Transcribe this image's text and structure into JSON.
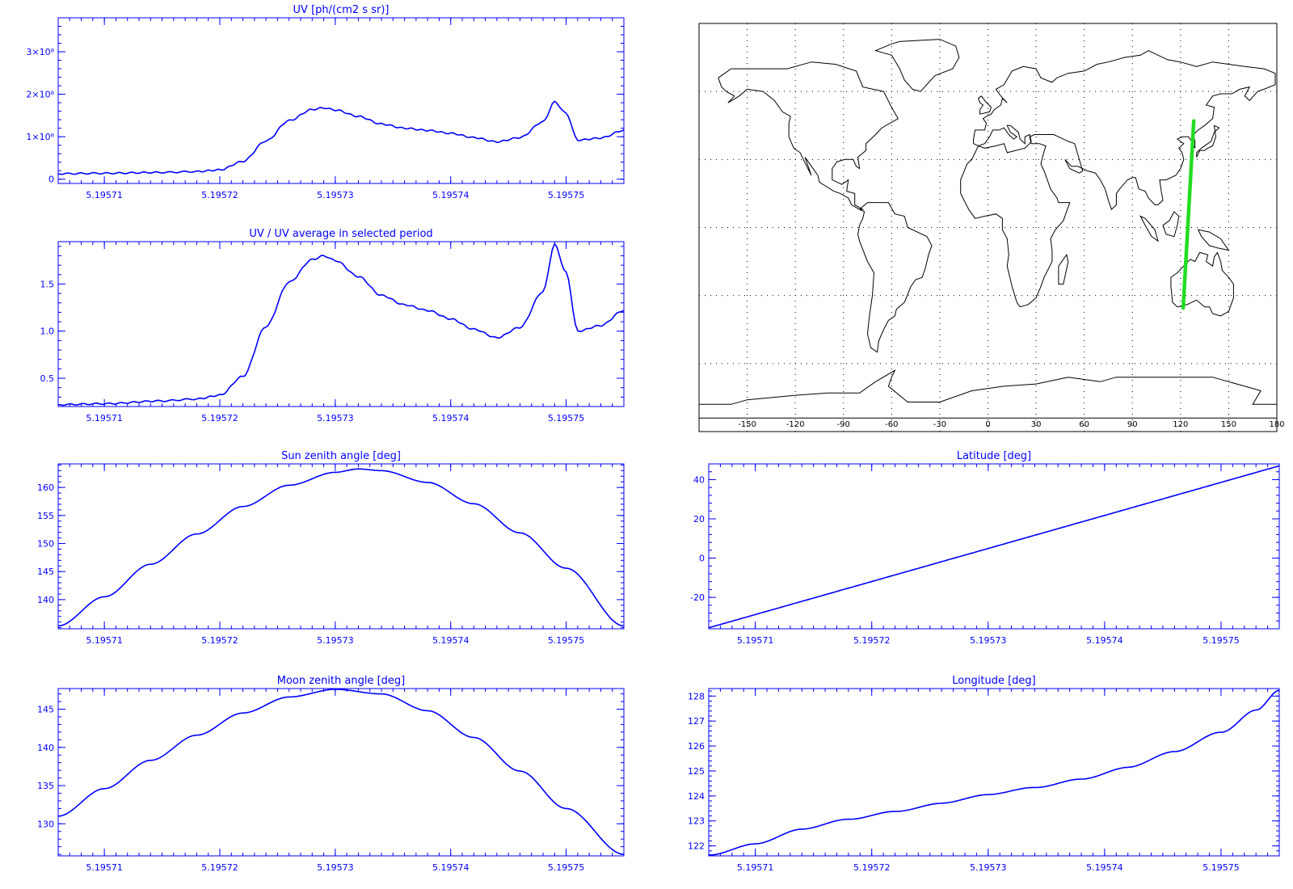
{
  "colors": {
    "axis": "#0000ff",
    "line": "#0000ff",
    "map_coast": "#000000",
    "map_frame": "#000000",
    "map_label": "#000000",
    "track": "#22dd22",
    "background": "#ffffff"
  },
  "chart_data": [
    {
      "id": "uv",
      "type": "line",
      "title": "UV [ph/(cm2 s sr)]",
      "xlim": [
        5.195706,
        5.195755
      ],
      "ylim": [
        -0.1,
        3.8
      ],
      "x_ticks": [
        5.19571,
        5.19572,
        5.19573,
        5.19574,
        5.19575
      ],
      "x_tick_labels": [
        "5.19571",
        "5.19572",
        "5.19573",
        "5.19574",
        "5.19575"
      ],
      "y_ticks": [
        0,
        1,
        2,
        3
      ],
      "y_tick_labels": [
        "0",
        "1×10⁸",
        "2×10⁸",
        "3×10⁸"
      ],
      "x": [
        5.195706,
        5.19571,
        5.195715,
        5.195718,
        5.19572,
        5.195722,
        5.195724,
        5.195726,
        5.195728,
        5.195729,
        5.19573,
        5.195732,
        5.195734,
        5.195736,
        5.195738,
        5.19574,
        5.195742,
        5.195744,
        5.195746,
        5.195748,
        5.195749,
        5.19575,
        5.195751,
        5.195753,
        5.195755
      ],
      "y": [
        0.13,
        0.14,
        0.16,
        0.18,
        0.22,
        0.42,
        0.9,
        1.38,
        1.64,
        1.68,
        1.63,
        1.48,
        1.3,
        1.2,
        1.15,
        1.08,
        0.98,
        0.88,
        0.98,
        1.35,
        1.82,
        1.55,
        0.92,
        0.97,
        1.15
      ]
    },
    {
      "id": "uv-ratio",
      "type": "line",
      "title": "UV / UV average in selected period",
      "xlim": [
        5.195706,
        5.195755
      ],
      "ylim": [
        0.2,
        1.95
      ],
      "x_ticks": [
        5.19571,
        5.19572,
        5.19573,
        5.19574,
        5.19575
      ],
      "x_tick_labels": [
        "5.19571",
        "5.19572",
        "5.19573",
        "5.19574",
        "5.19575"
      ],
      "y_ticks": [
        0.5,
        1.0,
        1.5
      ],
      "y_tick_labels": [
        "0.5",
        "1.0",
        "1.5"
      ],
      "x": [
        5.195706,
        5.19571,
        5.195715,
        5.195718,
        5.19572,
        5.195722,
        5.195724,
        5.195726,
        5.195728,
        5.195729,
        5.19573,
        5.195732,
        5.195734,
        5.195736,
        5.195738,
        5.19574,
        5.195742,
        5.195744,
        5.195746,
        5.195748,
        5.195749,
        5.19575,
        5.195751,
        5.195753,
        5.195755
      ],
      "y": [
        0.22,
        0.23,
        0.26,
        0.28,
        0.32,
        0.52,
        1.05,
        1.52,
        1.76,
        1.8,
        1.75,
        1.58,
        1.38,
        1.28,
        1.22,
        1.13,
        1.02,
        0.93,
        1.04,
        1.42,
        1.92,
        1.62,
        1.0,
        1.06,
        1.22
      ]
    },
    {
      "id": "sun-zenith",
      "type": "line",
      "title": "Sun zenith angle [deg]",
      "xlim": [
        5.195706,
        5.195755
      ],
      "ylim": [
        134.8,
        164.2
      ],
      "x_ticks": [
        5.19571,
        5.19572,
        5.19573,
        5.19574,
        5.19575
      ],
      "x_tick_labels": [
        "5.19571",
        "5.19572",
        "5.19573",
        "5.19574",
        "5.19575"
      ],
      "y_ticks": [
        140,
        145,
        150,
        155,
        160
      ],
      "y_tick_labels": [
        "140",
        "145",
        "150",
        "155",
        "160"
      ],
      "x": [
        5.195706,
        5.19571,
        5.195714,
        5.195718,
        5.195722,
        5.195726,
        5.19573,
        5.195732,
        5.195734,
        5.195738,
        5.195742,
        5.195746,
        5.19575,
        5.195755
      ],
      "y": [
        135.3,
        140.5,
        146.3,
        151.7,
        156.6,
        160.4,
        162.7,
        163.3,
        163.0,
        160.9,
        157.1,
        151.9,
        145.6,
        135.3
      ]
    },
    {
      "id": "latitude",
      "type": "line",
      "title": "Latitude [deg]",
      "xlim": [
        5.195706,
        5.195755
      ],
      "ylim": [
        -36,
        48
      ],
      "x_ticks": [
        5.19571,
        5.19572,
        5.19573,
        5.19574,
        5.19575
      ],
      "x_tick_labels": [
        "5.19571",
        "5.19572",
        "5.19573",
        "5.19574",
        "5.19575"
      ],
      "y_ticks": [
        -20,
        0,
        20,
        40
      ],
      "y_tick_labels": [
        "-20",
        "0",
        "20",
        "40"
      ],
      "x": [
        5.195706,
        5.195755
      ],
      "y": [
        -35.5,
        47.0
      ]
    },
    {
      "id": "moon-zenith",
      "type": "line",
      "title": "Moon zenith angle [deg]",
      "xlim": [
        5.195706,
        5.195755
      ],
      "ylim": [
        125.8,
        147.7
      ],
      "x_ticks": [
        5.19571,
        5.19572,
        5.19573,
        5.19574,
        5.19575
      ],
      "x_tick_labels": [
        "5.19571",
        "5.19572",
        "5.19573",
        "5.19574",
        "5.19575"
      ],
      "y_ticks": [
        130,
        135,
        140,
        145
      ],
      "y_tick_labels": [
        "130",
        "135",
        "140",
        "145"
      ],
      "x": [
        5.195706,
        5.19571,
        5.195714,
        5.195718,
        5.195722,
        5.195726,
        5.19573,
        5.195734,
        5.195738,
        5.195742,
        5.195746,
        5.19575,
        5.195755
      ],
      "y": [
        131.0,
        134.6,
        138.3,
        141.6,
        144.5,
        146.6,
        147.6,
        147.0,
        144.8,
        141.3,
        136.9,
        132.0,
        126.0
      ]
    },
    {
      "id": "longitude",
      "type": "line",
      "title": "Longitude [deg]",
      "xlim": [
        5.195706,
        5.195755
      ],
      "ylim": [
        121.6,
        128.3
      ],
      "x_ticks": [
        5.19571,
        5.19572,
        5.19573,
        5.19574,
        5.19575
      ],
      "x_tick_labels": [
        "5.19571",
        "5.19572",
        "5.19573",
        "5.19574",
        "5.19575"
      ],
      "y_ticks": [
        122,
        123,
        124,
        125,
        126,
        127,
        128
      ],
      "y_tick_labels": [
        "122",
        "123",
        "124",
        "125",
        "126",
        "127",
        "128"
      ],
      "x": [
        5.195706,
        5.19571,
        5.195714,
        5.195718,
        5.195722,
        5.195726,
        5.19573,
        5.195734,
        5.195738,
        5.195742,
        5.195746,
        5.19575,
        5.195753,
        5.195755
      ],
      "y": [
        121.65,
        122.1,
        122.65,
        123.05,
        123.4,
        123.72,
        124.03,
        124.33,
        124.7,
        125.15,
        125.75,
        126.55,
        127.45,
        128.25
      ]
    }
  ],
  "map": {
    "type": "world-map",
    "projection": "cylindrical",
    "lon_range": [
      -180,
      180
    ],
    "lat_range": [
      -90,
      90
    ],
    "lon_ticks": [
      -150,
      -120,
      -90,
      -60,
      -30,
      0,
      30,
      60,
      90,
      120,
      150,
      180
    ],
    "lon_tick_labels": [
      "-150",
      "-120",
      "-90",
      "-60",
      "-30",
      "0",
      "30",
      "60",
      "90",
      "120",
      "150",
      "180"
    ],
    "lat_grid": [
      -60,
      -30,
      0,
      30,
      60
    ],
    "track": {
      "lon": [
        121.65,
        128.25
      ],
      "lat": [
        -35.5,
        47.0
      ]
    }
  }
}
